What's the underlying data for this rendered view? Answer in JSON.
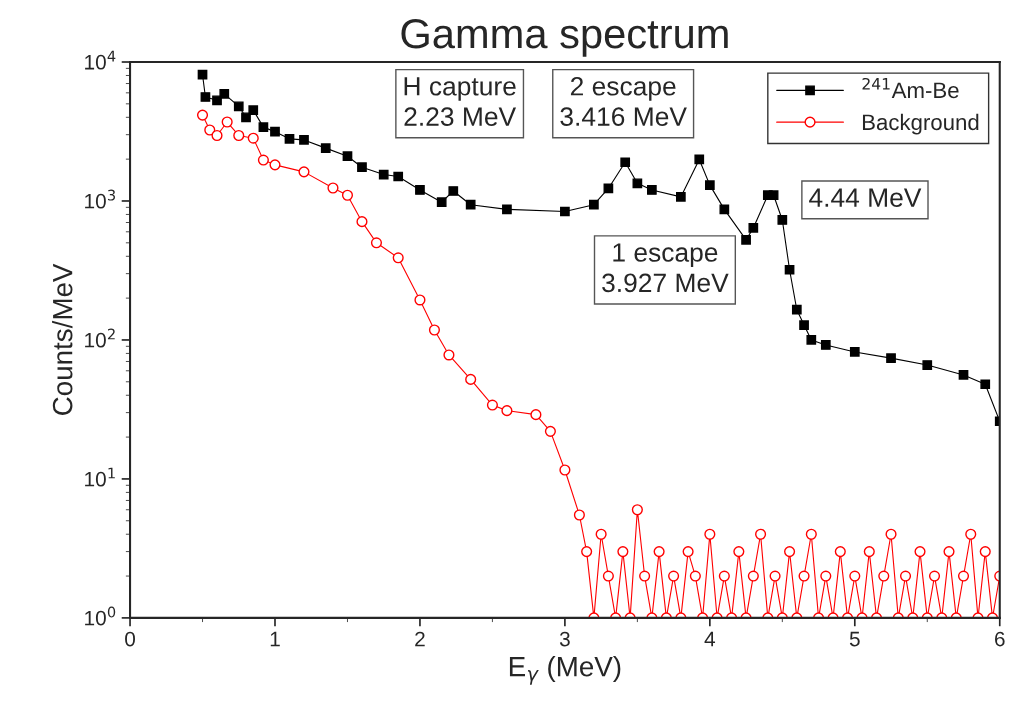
{
  "chart_data": {
    "type": "line",
    "title": "Gamma spectrum",
    "xlabel": "E$_{γ}$ (MeV)",
    "ylabel": "Counts/MeV",
    "log": "y",
    "xlim": [
      0,
      6
    ],
    "xticks": [
      0,
      1,
      2,
      3,
      4,
      5,
      6
    ],
    "ylim": [
      1,
      10000
    ],
    "yticks": [
      {
        "value": 1,
        "label": "10$^{0}$"
      },
      {
        "value": 10,
        "label": "10$^{1}$"
      },
      {
        "value": 100,
        "label": "10$^{2}$"
      },
      {
        "value": 1000,
        "label": "10$^{3}$"
      },
      {
        "value": 10000,
        "label": "10$^{4}$"
      }
    ],
    "grid": false,
    "legend": "top right",
    "line_style": "solid",
    "annotations": [
      "H capture\n2.23 MeV",
      "2 escape\n3.416 MeV",
      "1 escape\n3.927 MeV",
      "4.44 MeV"
    ],
    "series": [
      {
        "name": "$^{241}$Am-Be",
        "color": "#000000",
        "marker": "square",
        "x": [
          0.5,
          0.52,
          0.6,
          0.65,
          0.75,
          0.8,
          0.85,
          0.92,
          1.0,
          1.1,
          1.2,
          1.35,
          1.5,
          1.6,
          1.75,
          1.85,
          2.0,
          2.15,
          2.23,
          2.35,
          2.6,
          3.0,
          3.2,
          3.3,
          3.416,
          3.5,
          3.6,
          3.8,
          3.927,
          4.0,
          4.1,
          4.25,
          4.3,
          4.4,
          4.44,
          4.5,
          4.55,
          4.6,
          4.65,
          4.7,
          4.8,
          5.0,
          5.25,
          5.5,
          5.75,
          5.9,
          6.0
        ],
        "values": [
          8100,
          5600,
          5300,
          5900,
          4800,
          4000,
          4500,
          3400,
          3150,
          2800,
          2750,
          2400,
          2100,
          1750,
          1550,
          1500,
          1200,
          980,
          1180,
          940,
          870,
          840,
          940,
          1230,
          1900,
          1340,
          1200,
          1070,
          1990,
          1300,
          870,
          525,
          640,
          1100,
          1100,
          730,
          320,
          165,
          128,
          100,
          92,
          82,
          74,
          66,
          56,
          48,
          26
        ]
      },
      {
        "name": "Background",
        "color": "#ff0000",
        "marker": "circle",
        "x": [
          0.5,
          0.55,
          0.6,
          0.67,
          0.75,
          0.85,
          0.92,
          1.0,
          1.2,
          1.4,
          1.5,
          1.6,
          1.7,
          1.85,
          2.0,
          2.1,
          2.2,
          2.35,
          2.5,
          2.6,
          2.8,
          2.9,
          3.0,
          3.1,
          3.15,
          3.2,
          3.25,
          3.3,
          3.35,
          3.4,
          3.45,
          3.5,
          3.55,
          3.6,
          3.65,
          3.7,
          3.75,
          3.8,
          3.85,
          3.9,
          3.95,
          4.0,
          4.05,
          4.1,
          4.15,
          4.2,
          4.25,
          4.3,
          4.35,
          4.4,
          4.45,
          4.5,
          4.55,
          4.6,
          4.65,
          4.7,
          4.75,
          4.8,
          4.85,
          4.9,
          4.95,
          5.0,
          5.05,
          5.1,
          5.15,
          5.2,
          5.25,
          5.3,
          5.35,
          5.4,
          5.45,
          5.5,
          5.55,
          5.6,
          5.65,
          5.7,
          5.75,
          5.8,
          5.85,
          5.9,
          5.95,
          6.0
        ],
        "values": [
          4150,
          3240,
          2960,
          3700,
          2960,
          2830,
          1970,
          1820,
          1620,
          1240,
          1100,
          710,
          500,
          390,
          194,
          118,
          78,
          52,
          34,
          31,
          29,
          22,
          11.6,
          5.5,
          3,
          1,
          4,
          2,
          1,
          3,
          1,
          6,
          2,
          1,
          3,
          1,
          2,
          1,
          3,
          2,
          1,
          4,
          1,
          2,
          1,
          3,
          1,
          2,
          4,
          1,
          2,
          1,
          3,
          1,
          2,
          4,
          1,
          2,
          1,
          3,
          1,
          2,
          1,
          3,
          1,
          2,
          4,
          1,
          2,
          1,
          3,
          1,
          2,
          1,
          3,
          1,
          2,
          4,
          1,
          3,
          1,
          2
        ]
      }
    ]
  }
}
